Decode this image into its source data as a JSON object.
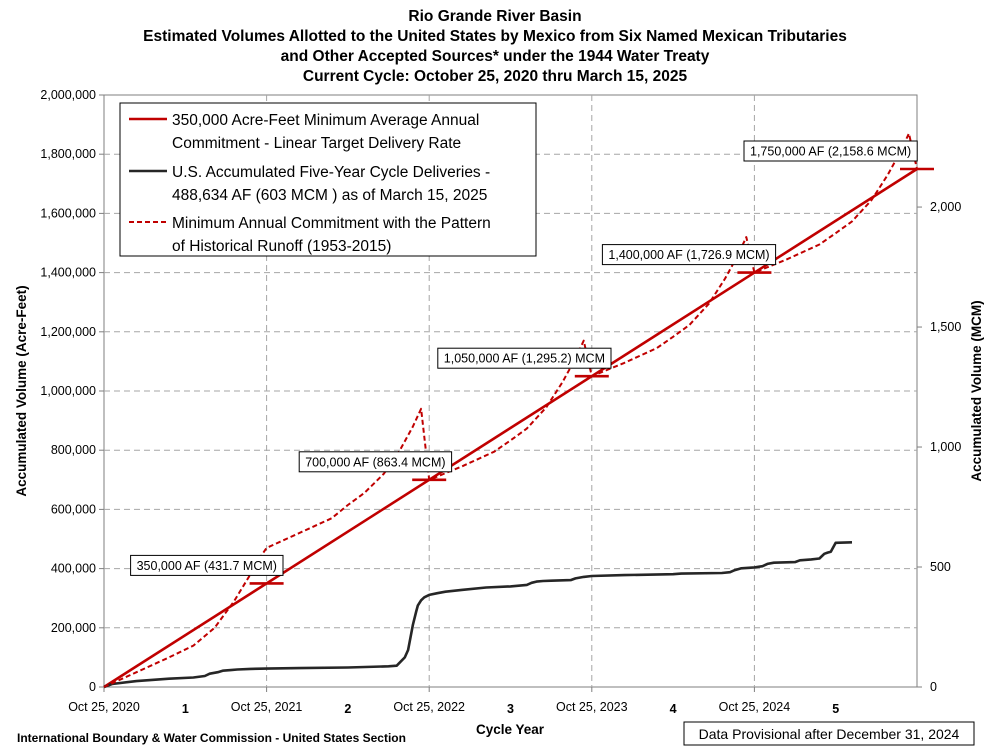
{
  "chart_data": {
    "type": "line",
    "title_lines": [
      "Rio Grande River Basin",
      "Estimated Volumes Allotted to the United States by Mexico from Six Named Mexican Tributaries",
      "and Other Accepted Sources* under the 1944 Water Treaty",
      "Current Cycle: October 25, 2020 thru March 15, 2025"
    ],
    "xlabel": "Cycle Year",
    "ylabel": "Accumulated Volume (Acre-Feet)",
    "y2label": "Accumulated Volume (MCM)",
    "xlim": [
      0,
      5
    ],
    "ylim": [
      0,
      2000000
    ],
    "y2lim": [
      0,
      2466.96
    ],
    "x_ticks": [
      {
        "x": 0,
        "label": "Oct 25, 2020"
      },
      {
        "x": 1,
        "label": "Oct 25, 2021"
      },
      {
        "x": 2,
        "label": "Oct 25, 2022"
      },
      {
        "x": 3,
        "label": "Oct 25, 2023"
      },
      {
        "x": 4,
        "label": "Oct 25, 2024"
      }
    ],
    "cycle_labels": [
      {
        "x": 0.5,
        "label": "1"
      },
      {
        "x": 1.5,
        "label": "2"
      },
      {
        "x": 2.5,
        "label": "3"
      },
      {
        "x": 3.5,
        "label": "4"
      },
      {
        "x": 4.5,
        "label": "5"
      }
    ],
    "y_ticks": [
      {
        "v": 0,
        "label": "0"
      },
      {
        "v": 200000,
        "label": "200,000"
      },
      {
        "v": 400000,
        "label": "400,000"
      },
      {
        "v": 600000,
        "label": "600,000"
      },
      {
        "v": 800000,
        "label": "800,000"
      },
      {
        "v": 1000000,
        "label": "1,000,000"
      },
      {
        "v": 1200000,
        "label": "1,200,000"
      },
      {
        "v": 1400000,
        "label": "1,400,000"
      },
      {
        "v": 1600000,
        "label": "1,600,000"
      },
      {
        "v": 1800000,
        "label": "1,800,000"
      },
      {
        "v": 2000000,
        "label": "2,000,000"
      }
    ],
    "y2_ticks": [
      {
        "v": 0,
        "label": "0"
      },
      {
        "v": 500,
        "label": "500"
      },
      {
        "v": 1000,
        "label": "1,000"
      },
      {
        "v": 1500,
        "label": "1,500"
      },
      {
        "v": 2000,
        "label": "2,000"
      }
    ],
    "series": [
      {
        "name": "linear",
        "legend_lines": [
          "350,000 Acre-Feet Minimum Average Annual",
          "Commitment - Linear Target Delivery Rate"
        ],
        "color": "#c00000",
        "style": "solid",
        "x": [
          0,
          5
        ],
        "y": [
          0,
          1750000
        ]
      },
      {
        "name": "deliveries",
        "legend_lines": [
          "U.S. Accumulated Five-Year Cycle Deliveries -",
          "488,634 AF (603 MCM ) as of March 15, 2025"
        ],
        "color": "#262626",
        "style": "solid",
        "x": [
          0,
          0.05,
          0.2,
          0.4,
          0.55,
          0.62,
          0.65,
          0.7,
          0.73,
          0.78,
          0.82,
          0.9,
          1.0,
          1.2,
          1.5,
          1.75,
          1.8,
          1.85,
          1.87,
          1.9,
          1.92,
          1.93,
          1.95,
          1.97,
          2.0,
          2.05,
          2.1,
          2.2,
          2.35,
          2.5,
          2.6,
          2.63,
          2.66,
          2.7,
          2.75,
          2.87,
          2.9,
          2.95,
          3.0,
          3.2,
          3.5,
          3.55,
          3.8,
          3.85,
          3.88,
          3.92,
          4.0,
          4.05,
          4.08,
          4.12,
          4.25,
          4.28,
          4.35,
          4.4,
          4.43,
          4.45,
          4.47,
          4.5,
          4.6
        ],
        "y": [
          0,
          10000,
          20000,
          28000,
          32000,
          37000,
          45000,
          50000,
          55000,
          57000,
          59000,
          61000,
          62000,
          64000,
          66000,
          70000,
          72000,
          100000,
          125000,
          210000,
          255000,
          275000,
          293000,
          303000,
          311000,
          317000,
          322000,
          328000,
          336000,
          340000,
          345000,
          352000,
          356000,
          358000,
          359000,
          361000,
          367000,
          372000,
          375000,
          378000,
          381000,
          383000,
          385000,
          388000,
          395000,
          401000,
          404000,
          408000,
          416000,
          420000,
          422000,
          428000,
          431000,
          434000,
          450000,
          454000,
          457000,
          487000,
          489000
        ]
      },
      {
        "name": "historical",
        "legend_lines": [
          "Minimum Annual Commitment with the Pattern",
          "of Historical Runoff (1953-2015)"
        ],
        "color": "#c00000",
        "style": "dashed",
        "x": [
          0,
          0.2,
          0.4,
          0.55,
          0.68,
          0.8,
          0.9,
          0.95,
          1.0,
          1.2,
          1.4,
          1.5,
          1.6,
          1.72,
          1.82,
          1.9,
          1.95,
          2.0,
          2.2,
          2.4,
          2.5,
          2.6,
          2.72,
          2.82,
          2.9,
          2.95,
          3.0,
          3.2,
          3.4,
          3.5,
          3.6,
          3.72,
          3.82,
          3.9,
          3.95,
          4.0,
          4.2,
          4.4,
          4.5,
          4.6,
          4.72,
          4.82,
          4.9,
          4.95,
          5.0
        ],
        "y": [
          0,
          50000,
          100000,
          140000,
          200000,
          290000,
          380000,
          430000,
          470000,
          520000,
          570000,
          615000,
          655000,
          720000,
          800000,
          880000,
          940000,
          700000,
          745000,
          795000,
          833000,
          873000,
          945000,
          1030000,
          1110000,
          1170000,
          1050000,
          1095000,
          1145000,
          1183000,
          1223000,
          1295000,
          1380000,
          1460000,
          1520000,
          1400000,
          1445000,
          1495000,
          1533000,
          1573000,
          1645000,
          1730000,
          1810000,
          1870000,
          1750000
        ]
      }
    ],
    "target_markers": [
      {
        "x": 1,
        "y": 350000
      },
      {
        "x": 2,
        "y": 700000
      },
      {
        "x": 3,
        "y": 1050000
      },
      {
        "x": 4,
        "y": 1400000
      },
      {
        "x": 5,
        "y": 1750000
      }
    ],
    "annotations": [
      {
        "x": 1,
        "y": 350000,
        "text": "350,000 AF (431.7 MCM)"
      },
      {
        "x": 2,
        "y": 700000,
        "text": "700,000 AF (863.4 MCM)"
      },
      {
        "x": 3,
        "y": 1050000,
        "text": "1,050,000 AF (1,295.2) MCM"
      },
      {
        "x": 4,
        "y": 1400000,
        "text": "1,400,000  AF (1,726.9 MCM)"
      },
      {
        "x": 5,
        "y": 1750000,
        "text": "1,750,000 AF (2,158.6 MCM)"
      }
    ]
  },
  "footer": {
    "left": "International Boundary & Water Commission - United States Section",
    "right": "Data Provisional after December 31, 2024"
  }
}
